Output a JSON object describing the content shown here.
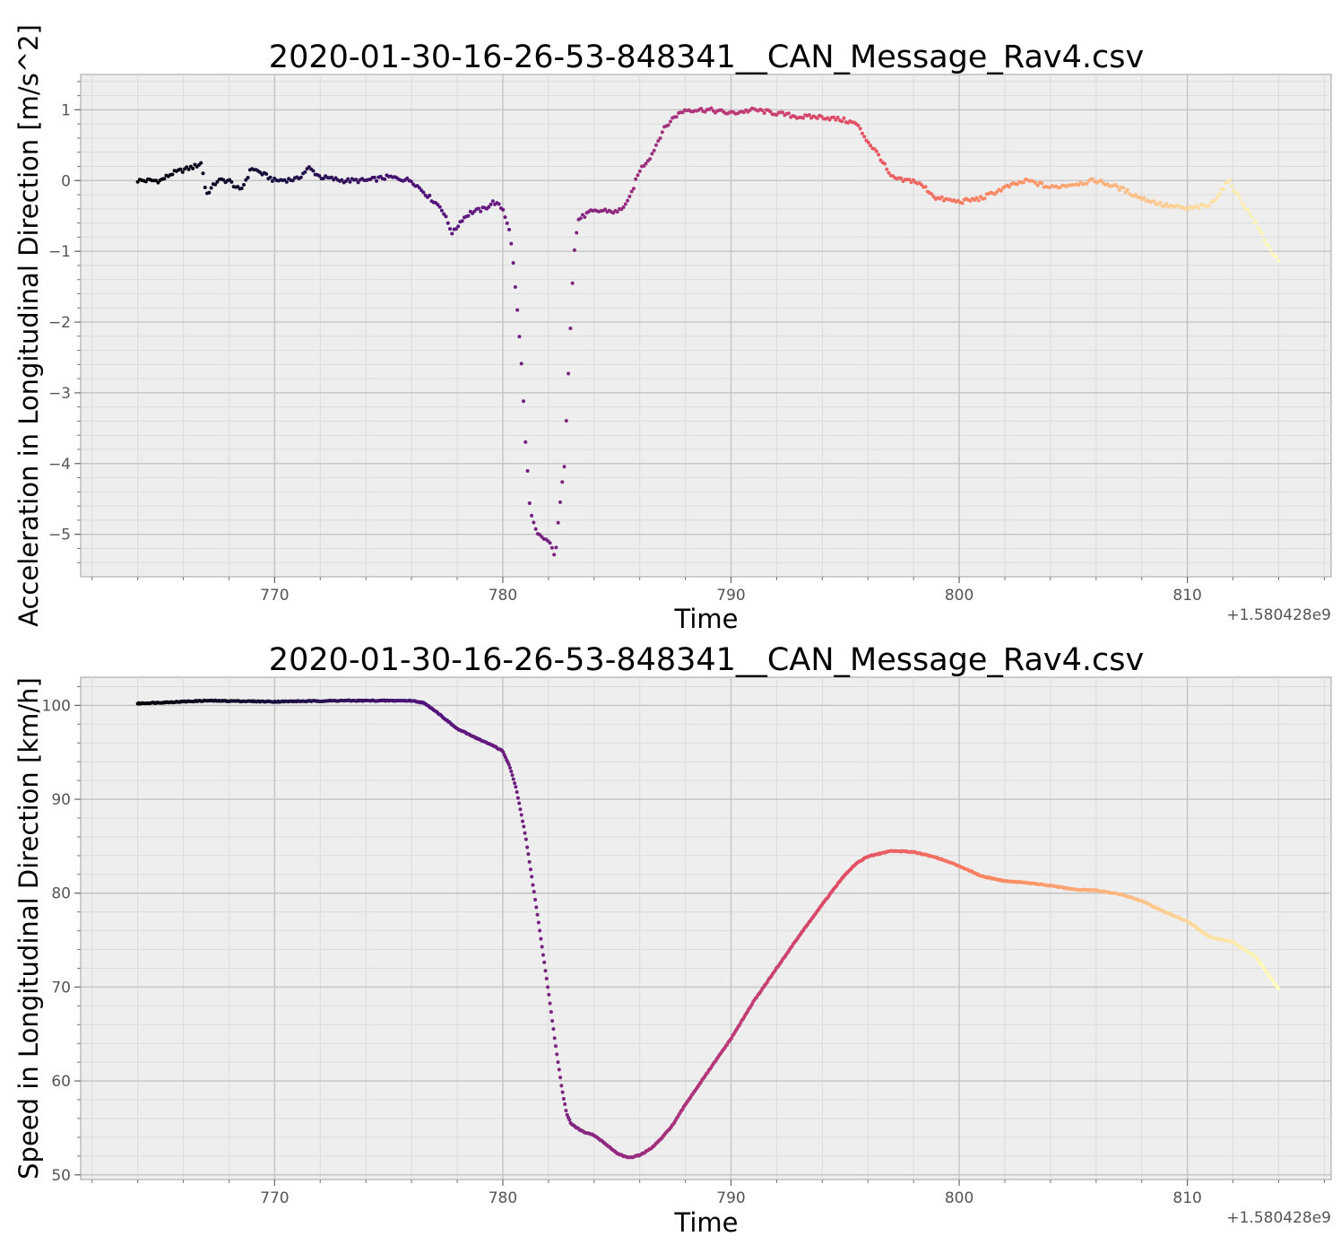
{
  "chart_data": [
    {
      "type": "scatter",
      "title": "2020-01-30-16-26-53-848341__CAN_Message_Rav4.csv",
      "xlabel": "Time",
      "ylabel": "Acceleration in Longitudinal Direction [m/s^2]",
      "x_offset_label": "+1.580428e9",
      "xlim": [
        761.5,
        816.3
      ],
      "ylim": [
        -5.6,
        1.5
      ],
      "x_ticks": [
        770,
        780,
        790,
        800,
        810
      ],
      "y_ticks": [
        1,
        0,
        -1,
        -2,
        -3,
        -4,
        -5
      ],
      "x_tick_labels": [
        "770",
        "780",
        "790",
        "800",
        "810"
      ],
      "y_tick_labels": [
        "1",
        "0",
        "−1",
        "−2",
        "−3",
        "−4",
        "−5"
      ],
      "grid": true,
      "colormap": "magma",
      "x_range": [
        764.0,
        814.0
      ],
      "series_points": [
        [
          764.0,
          0.0
        ],
        [
          765.0,
          0.0
        ],
        [
          765.5,
          0.1
        ],
        [
          766.0,
          0.15
        ],
        [
          766.5,
          0.2
        ],
        [
          766.8,
          0.25
        ],
        [
          767.0,
          -0.2
        ],
        [
          767.5,
          0.0
        ],
        [
          768.0,
          0.0
        ],
        [
          768.5,
          -0.15
        ],
        [
          769.0,
          0.18
        ],
        [
          770.0,
          0.0
        ],
        [
          771.0,
          0.02
        ],
        [
          771.5,
          0.18
        ],
        [
          772.0,
          0.05
        ],
        [
          773.0,
          0.0
        ],
        [
          774.0,
          0.0
        ],
        [
          775.0,
          0.05
        ],
        [
          776.0,
          0.0
        ],
        [
          776.5,
          -0.15
        ],
        [
          777.0,
          -0.3
        ],
        [
          777.3,
          -0.38
        ],
        [
          777.8,
          -0.75
        ],
        [
          778.2,
          -0.55
        ],
        [
          778.6,
          -0.45
        ],
        [
          779.2,
          -0.4
        ],
        [
          779.6,
          -0.3
        ],
        [
          780.0,
          -0.4
        ],
        [
          780.3,
          -0.7
        ],
        [
          780.5,
          -1.3
        ],
        [
          780.8,
          -2.5
        ],
        [
          781.0,
          -3.7
        ],
        [
          781.2,
          -4.7
        ],
        [
          781.5,
          -5.0
        ],
        [
          782.0,
          -5.1
        ],
        [
          782.3,
          -5.3
        ],
        [
          782.5,
          -4.6
        ],
        [
          782.7,
          -4.0
        ],
        [
          782.9,
          -2.5
        ],
        [
          783.1,
          -1.1
        ],
        [
          783.3,
          -0.55
        ],
        [
          783.8,
          -0.45
        ],
        [
          784.5,
          -0.42
        ],
        [
          785.0,
          -0.45
        ],
        [
          785.5,
          -0.3
        ],
        [
          786.0,
          0.15
        ],
        [
          786.5,
          0.35
        ],
        [
          787.0,
          0.7
        ],
        [
          787.5,
          0.9
        ],
        [
          788.0,
          1.0
        ],
        [
          789.0,
          1.0
        ],
        [
          790.0,
          0.95
        ],
        [
          791.0,
          1.0
        ],
        [
          792.0,
          0.95
        ],
        [
          793.0,
          0.9
        ],
        [
          794.0,
          0.9
        ],
        [
          795.0,
          0.85
        ],
        [
          795.5,
          0.8
        ],
        [
          796.0,
          0.55
        ],
        [
          796.5,
          0.35
        ],
        [
          797.0,
          0.05
        ],
        [
          797.5,
          0.0
        ],
        [
          798.0,
          0.0
        ],
        [
          798.5,
          -0.1
        ],
        [
          799.0,
          -0.25
        ],
        [
          800.0,
          -0.3
        ],
        [
          801.0,
          -0.25
        ],
        [
          802.0,
          -0.1
        ],
        [
          803.0,
          0.0
        ],
        [
          804.0,
          -0.1
        ],
        [
          805.0,
          -0.05
        ],
        [
          806.0,
          0.0
        ],
        [
          807.0,
          -0.1
        ],
        [
          808.0,
          -0.25
        ],
        [
          809.0,
          -0.35
        ],
        [
          810.0,
          -0.4
        ],
        [
          811.0,
          -0.35
        ],
        [
          811.8,
          0.0
        ],
        [
          812.5,
          -0.35
        ],
        [
          813.0,
          -0.6
        ],
        [
          813.5,
          -0.9
        ],
        [
          814.0,
          -1.15
        ]
      ]
    },
    {
      "type": "scatter",
      "title": "2020-01-30-16-26-53-848341__CAN_Message_Rav4.csv",
      "xlabel": "Time",
      "ylabel": "Speed in Longitudinal Direction [km/h]",
      "x_offset_label": "+1.580428e9",
      "xlim": [
        761.5,
        816.3
      ],
      "ylim": [
        49.5,
        103.0
      ],
      "x_ticks": [
        770,
        780,
        790,
        800,
        810
      ],
      "y_ticks": [
        100,
        90,
        80,
        70,
        60,
        50
      ],
      "x_tick_labels": [
        "770",
        "780",
        "790",
        "800",
        "810"
      ],
      "y_tick_labels": [
        "100",
        "90",
        "80",
        "70",
        "60",
        "50"
      ],
      "grid": true,
      "colormap": "magma",
      "x_range": [
        764.0,
        814.0
      ],
      "series_points": [
        [
          764.0,
          100.2
        ],
        [
          766.0,
          100.4
        ],
        [
          767.0,
          100.5
        ],
        [
          770.0,
          100.4
        ],
        [
          773.0,
          100.5
        ],
        [
          776.0,
          100.5
        ],
        [
          776.5,
          100.3
        ],
        [
          777.0,
          99.5
        ],
        [
          777.5,
          98.5
        ],
        [
          778.0,
          97.5
        ],
        [
          778.7,
          96.7
        ],
        [
          779.2,
          96.1
        ],
        [
          779.6,
          95.7
        ],
        [
          780.0,
          95.1
        ],
        [
          780.3,
          93.5
        ],
        [
          780.6,
          91.0
        ],
        [
          781.0,
          86.0
        ],
        [
          781.5,
          78.0
        ],
        [
          782.0,
          69.5
        ],
        [
          782.3,
          64.0
        ],
        [
          782.6,
          59.0
        ],
        [
          782.8,
          56.5
        ],
        [
          783.0,
          55.4
        ],
        [
          783.5,
          54.6
        ],
        [
          784.0,
          54.2
        ],
        [
          784.5,
          53.3
        ],
        [
          785.0,
          52.3
        ],
        [
          785.5,
          51.8
        ],
        [
          786.0,
          52.1
        ],
        [
          786.5,
          52.8
        ],
        [
          787.0,
          54.0
        ],
        [
          787.5,
          55.5
        ],
        [
          788.0,
          57.5
        ],
        [
          789.0,
          61.0
        ],
        [
          790.0,
          64.5
        ],
        [
          791.0,
          68.5
        ],
        [
          792.0,
          72.0
        ],
        [
          793.0,
          75.5
        ],
        [
          794.0,
          78.8
        ],
        [
          795.0,
          82.0
        ],
        [
          795.5,
          83.2
        ],
        [
          796.0,
          83.9
        ],
        [
          797.0,
          84.5
        ],
        [
          798.0,
          84.4
        ],
        [
          799.0,
          83.8
        ],
        [
          800.0,
          82.9
        ],
        [
          801.0,
          81.8
        ],
        [
          802.0,
          81.3
        ],
        [
          803.0,
          81.1
        ],
        [
          804.0,
          80.8
        ],
        [
          805.0,
          80.4
        ],
        [
          806.0,
          80.3
        ],
        [
          807.0,
          79.9
        ],
        [
          808.0,
          79.2
        ],
        [
          809.0,
          78.0
        ],
        [
          810.0,
          77.0
        ],
        [
          811.0,
          75.3
        ],
        [
          812.0,
          74.8
        ],
        [
          813.0,
          73.2
        ],
        [
          814.0,
          69.8
        ]
      ]
    }
  ]
}
